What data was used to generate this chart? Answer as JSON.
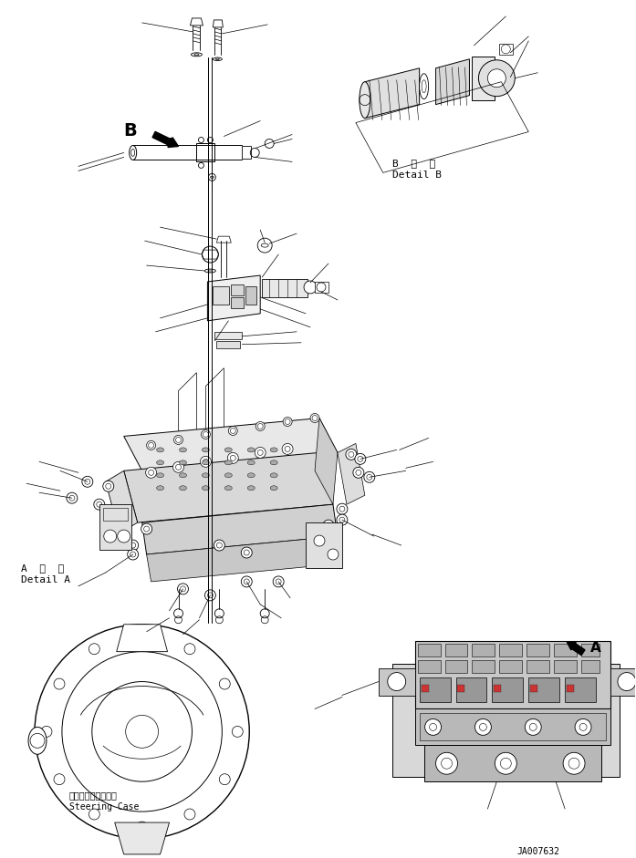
{
  "bg_color": "#ffffff",
  "line_color": "#000000",
  "fig_width": 6.97,
  "fig_height": 9.41,
  "dpi": 100,
  "part_number": "JA007632",
  "detail_b_label_1": "B  詳  細",
  "detail_b_label_2": "Detail B",
  "detail_a_label_1": "A  詳  細",
  "detail_a_label_2": "Detail A",
  "steering_case_label_1": "ステアリングケース",
  "steering_case_label_2": "Steering Case",
  "label_B": "B",
  "label_A": "A",
  "font_size_tiny": 6,
  "font_size_small": 7,
  "font_size_medium": 8,
  "font_size_large": 11
}
